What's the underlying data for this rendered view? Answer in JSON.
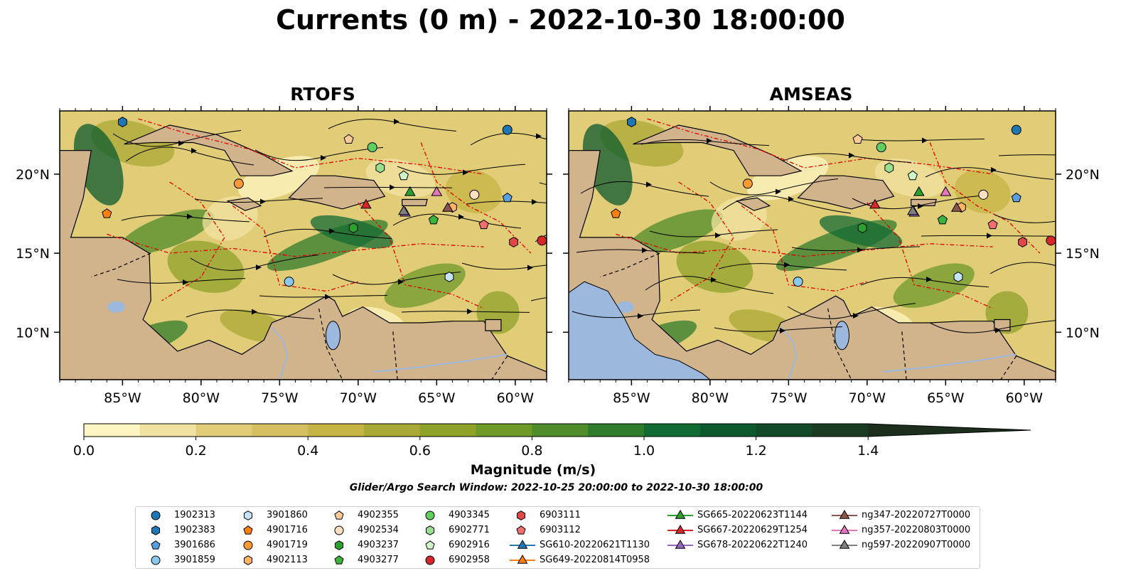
{
  "title": "Currents (0 m) - 2022-10-30 18:00:00",
  "panels": [
    {
      "title": "RTOFS"
    },
    {
      "title": "AMSEAS"
    }
  ],
  "axes": {
    "lon_ticks": [
      "85°W",
      "80°W",
      "75°W",
      "70°W",
      "65°W",
      "60°W"
    ],
    "lat_ticks": [
      "20°N",
      "15°N",
      "10°N"
    ],
    "lon_range": [
      -89,
      -58
    ],
    "lat_range": [
      7,
      24
    ]
  },
  "colorbar": {
    "label": "Magnitude (m/s)",
    "ticks": [
      "0.0",
      "0.2",
      "0.4",
      "0.6",
      "0.8",
      "1.0",
      "1.2",
      "1.4"
    ],
    "range": [
      0,
      1.5
    ],
    "extend": "max",
    "colors": [
      "#fdf6c3",
      "#f0e3a1",
      "#e1cc78",
      "#d5bf60",
      "#c6b545",
      "#a9a935",
      "#8ea228",
      "#6e9a28",
      "#4f8c2a",
      "#2f7c2c",
      "#136b34",
      "#0c5a2e",
      "#124a29",
      "#1a3c22",
      "#1c2e1c"
    ]
  },
  "search_window": "Glider/Argo Search Window: 2022-10-25 20:00:00 to 2022-10-30 18:00:00",
  "legend": {
    "placement": "bottom",
    "entries": [
      {
        "label": "1902313",
        "marker": "circle",
        "color": "#1f77b4",
        "kind": "argo"
      },
      {
        "label": "1902383",
        "marker": "hexagon",
        "color": "#1f77b4",
        "kind": "argo"
      },
      {
        "label": "3901686",
        "marker": "pentagon",
        "color": "#5aa0e0",
        "kind": "argo"
      },
      {
        "label": "3901859",
        "marker": "circle",
        "color": "#8cc7ec",
        "kind": "argo"
      },
      {
        "label": "3901860",
        "marker": "hexagon",
        "color": "#c5e4f7",
        "kind": "argo"
      },
      {
        "label": "4901716",
        "marker": "pentagon",
        "color": "#ff7f0e",
        "kind": "argo"
      },
      {
        "label": "4901719",
        "marker": "circle",
        "color": "#ff9933",
        "kind": "argo"
      },
      {
        "label": "4902113",
        "marker": "hexagon",
        "color": "#ffb366",
        "kind": "argo"
      },
      {
        "label": "4902355",
        "marker": "pentagon",
        "color": "#ffcc99",
        "kind": "argo"
      },
      {
        "label": "4902534",
        "marker": "circle",
        "color": "#ffe0c0",
        "kind": "argo"
      },
      {
        "label": "4903237",
        "marker": "hexagon",
        "color": "#2ca02c",
        "kind": "argo"
      },
      {
        "label": "4903277",
        "marker": "pentagon",
        "color": "#3cb43c",
        "kind": "argo"
      },
      {
        "label": "4903345",
        "marker": "circle",
        "color": "#5fcf5f",
        "kind": "argo"
      },
      {
        "label": "6902771",
        "marker": "hexagon",
        "color": "#98e08f",
        "kind": "argo"
      },
      {
        "label": "6902916",
        "marker": "pentagon",
        "color": "#d0f5c8",
        "kind": "argo"
      },
      {
        "label": "6902958",
        "marker": "circle",
        "color": "#d62728",
        "kind": "argo"
      },
      {
        "label": "6903111",
        "marker": "hexagon",
        "color": "#e04848",
        "kind": "argo"
      },
      {
        "label": "6903112",
        "marker": "pentagon",
        "color": "#f07070",
        "kind": "argo"
      },
      {
        "label": "SG610-20220621T1130",
        "marker": "triangle",
        "color": "#1f77b4",
        "kind": "glider"
      },
      {
        "label": "SG649-20220814T0958",
        "marker": "triangle",
        "color": "#ff7f0e",
        "kind": "glider"
      },
      {
        "label": "SG665-20220623T1144",
        "marker": "triangle",
        "color": "#2ca02c",
        "kind": "glider"
      },
      {
        "label": "SG667-20220629T1254",
        "marker": "triangle",
        "color": "#d62728",
        "kind": "glider"
      },
      {
        "label": "SG678-20220622T1240",
        "marker": "triangle",
        "color": "#9467bd",
        "kind": "glider"
      },
      {
        "label": "ng347-20220727T0000",
        "marker": "triangle",
        "color": "#8c564b",
        "kind": "glider"
      },
      {
        "label": "ng357-20220803T0000",
        "marker": "triangle",
        "color": "#e377c2",
        "kind": "glider"
      },
      {
        "label": "ng597-20220907T0000",
        "marker": "triangle",
        "color": "#7f7f7f",
        "kind": "glider"
      }
    ]
  },
  "markers": [
    {
      "id": "1902313",
      "lon": -60.5,
      "lat": 22.8
    },
    {
      "id": "1902383",
      "lon": -85.0,
      "lat": 23.3
    },
    {
      "id": "3901686",
      "lon": -60.5,
      "lat": 18.5
    },
    {
      "id": "3901859",
      "lon": -74.4,
      "lat": 13.2
    },
    {
      "id": "3901860",
      "lon": -64.2,
      "lat": 13.5
    },
    {
      "id": "4901716",
      "lon": -86.0,
      "lat": 17.5
    },
    {
      "id": "4901719",
      "lon": -77.6,
      "lat": 19.4
    },
    {
      "id": "4902113",
      "lon": -64.0,
      "lat": 17.9
    },
    {
      "id": "4902355",
      "lon": -70.6,
      "lat": 22.2
    },
    {
      "id": "4902534",
      "lon": -62.6,
      "lat": 18.7
    },
    {
      "id": "4903237",
      "lon": -70.3,
      "lat": 16.6
    },
    {
      "id": "4903277",
      "lon": -65.2,
      "lat": 17.1
    },
    {
      "id": "4903345",
      "lon": -69.1,
      "lat": 21.7
    },
    {
      "id": "6902771",
      "lon": -68.6,
      "lat": 20.4
    },
    {
      "id": "6902916",
      "lon": -67.1,
      "lat": 19.9
    },
    {
      "id": "6902958",
      "lon": -58.3,
      "lat": 15.8
    },
    {
      "id": "6903111",
      "lon": -60.1,
      "lat": 15.7
    },
    {
      "id": "6903112",
      "lon": -62.0,
      "lat": 16.8
    },
    {
      "id": "SG665-20220623T1144",
      "lon": -66.7,
      "lat": 18.9
    },
    {
      "id": "SG667-20220629T1254",
      "lon": -69.5,
      "lat": 18.1
    },
    {
      "id": "SG678-20220622T1240",
      "lon": -67.0,
      "lat": 17.6
    },
    {
      "id": "ng347-20220727T0000",
      "lon": -64.3,
      "lat": 17.9
    },
    {
      "id": "ng357-20220803T0000",
      "lon": -65.0,
      "lat": 18.9
    },
    {
      "id": "ng597-20220907T0000",
      "lon": -67.1,
      "lat": 17.7
    }
  ]
}
